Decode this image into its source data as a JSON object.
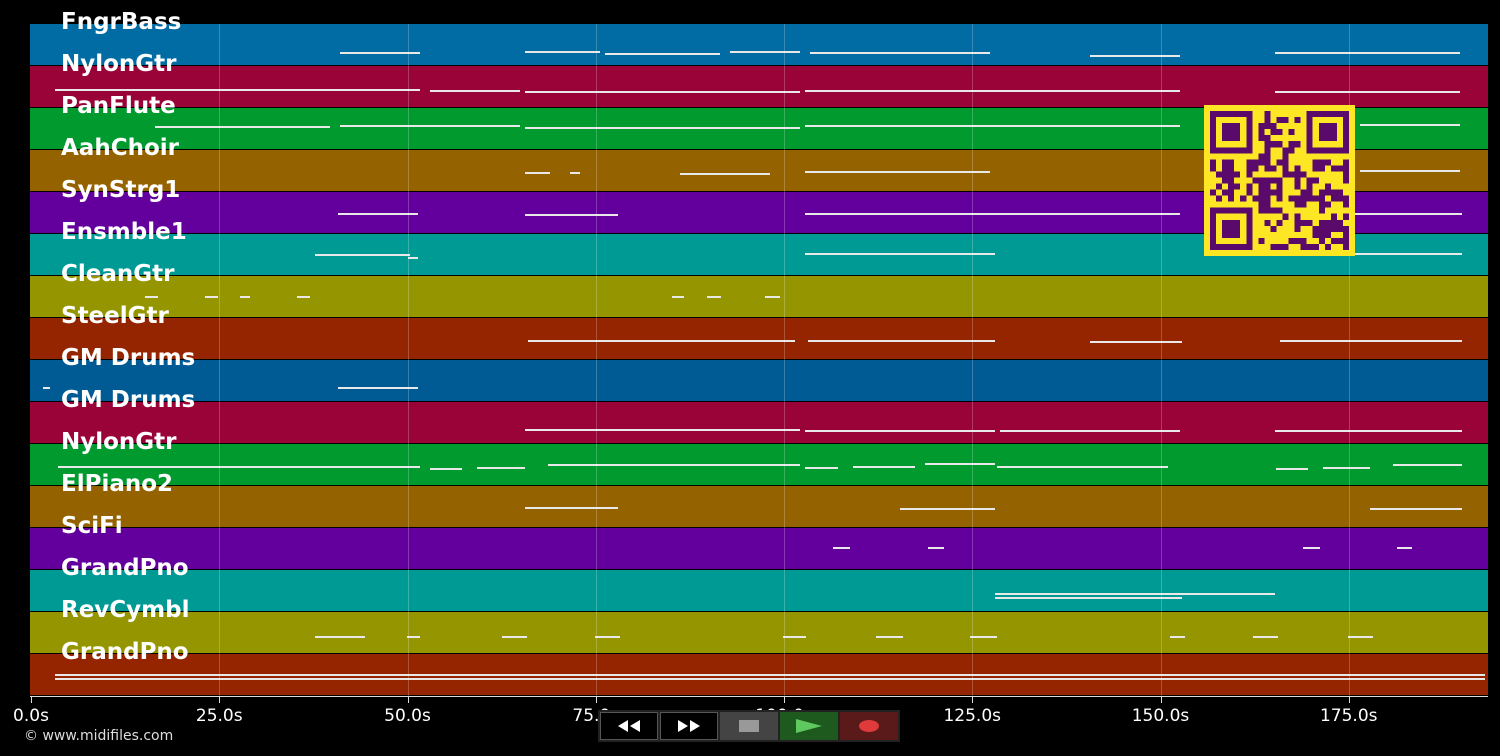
{
  "lanes": [
    {
      "label": "FngrBass",
      "color": "#016ba3",
      "notes": [
        [
          340,
          420,
          28
        ],
        [
          525,
          600,
          27
        ],
        [
          605,
          720,
          29
        ],
        [
          730,
          800,
          27
        ],
        [
          810,
          990,
          28
        ],
        [
          1090,
          1180,
          31
        ],
        [
          1275,
          1460,
          28
        ]
      ]
    },
    {
      "label": "NylonGtr",
      "color": "#9a0338",
      "notes": [
        [
          55,
          420,
          23
        ],
        [
          430,
          520,
          24
        ],
        [
          525,
          800,
          25
        ],
        [
          805,
          1180,
          24
        ],
        [
          1275,
          1460,
          25
        ]
      ]
    },
    {
      "label": "PanFlute",
      "color": "#009a2e",
      "notes": [
        [
          155,
          330,
          18
        ],
        [
          340,
          520,
          17
        ],
        [
          525,
          800,
          19
        ],
        [
          805,
          1180,
          17
        ],
        [
          1360,
          1460,
          16
        ]
      ]
    },
    {
      "label": "AahChoir",
      "color": "#956200",
      "notes": [
        [
          525,
          550,
          22
        ],
        [
          570,
          580,
          22
        ],
        [
          680,
          770,
          23
        ],
        [
          805,
          990,
          21
        ],
        [
          1360,
          1460,
          20
        ]
      ]
    },
    {
      "label": "SynStrg1",
      "color": "#63009d",
      "notes": [
        [
          338,
          418,
          21
        ],
        [
          525,
          618,
          22
        ],
        [
          805,
          1180,
          21
        ],
        [
          1355,
          1462,
          21
        ]
      ]
    },
    {
      "label": "Ensmble1",
      "color": "#009a95",
      "notes": [
        [
          315,
          410,
          20
        ],
        [
          408,
          418,
          23
        ],
        [
          805,
          995,
          19
        ],
        [
          1355,
          1462,
          19
        ]
      ]
    },
    {
      "label": "CleanGtr",
      "color": "#959500",
      "notes": [
        [
          145,
          158,
          20
        ],
        [
          205,
          218,
          20
        ],
        [
          240,
          250,
          20
        ],
        [
          297,
          310,
          20
        ],
        [
          672,
          684,
          20
        ],
        [
          707,
          721,
          20
        ],
        [
          765,
          780,
          20
        ]
      ]
    },
    {
      "label": "SteelGtr",
      "color": "#952500",
      "notes": [
        [
          528,
          795,
          22
        ],
        [
          808,
          995,
          22
        ],
        [
          1090,
          1182,
          23
        ],
        [
          1280,
          1462,
          22
        ]
      ]
    },
    {
      "label": "GM Drums",
      "color": "#005b95",
      "notes": [
        [
          43,
          50,
          27
        ],
        [
          338,
          418,
          27
        ]
      ]
    },
    {
      "label": "GM Drums",
      "color": "#9a0338",
      "notes": [
        [
          525,
          800,
          27
        ],
        [
          805,
          995,
          28
        ],
        [
          1000,
          1180,
          28
        ],
        [
          1275,
          1462,
          28
        ]
      ]
    },
    {
      "label": "NylonGtr",
      "color": "#009a2e",
      "notes": [
        [
          58,
          420,
          22
        ],
        [
          430,
          462,
          24
        ],
        [
          477,
          525,
          23
        ],
        [
          548,
          800,
          20
        ],
        [
          805,
          838,
          23
        ],
        [
          853,
          915,
          22
        ],
        [
          925,
          995,
          19
        ],
        [
          997,
          1168,
          22
        ],
        [
          1276,
          1308,
          24
        ],
        [
          1323,
          1370,
          23
        ],
        [
          1393,
          1462,
          20
        ]
      ]
    },
    {
      "label": "ElPiano2",
      "color": "#956200",
      "notes": [
        [
          525,
          618,
          21
        ],
        [
          900,
          995,
          22
        ],
        [
          1370,
          1462,
          22
        ]
      ]
    },
    {
      "label": "SciFi",
      "color": "#63009d",
      "notes": [
        [
          833,
          850,
          19
        ],
        [
          928,
          944,
          19
        ],
        [
          1303,
          1320,
          19
        ],
        [
          1397,
          1412,
          19
        ]
      ]
    },
    {
      "label": "GrandPno",
      "color": "#009a95",
      "notes": [
        [
          995,
          1275,
          23
        ],
        [
          995,
          1182,
          27
        ]
      ]
    },
    {
      "label": "RevCymbl",
      "color": "#959500",
      "notes": [
        [
          315,
          365,
          24
        ],
        [
          407,
          420,
          24
        ],
        [
          502,
          527,
          24
        ],
        [
          595,
          620,
          24
        ],
        [
          783,
          806,
          24
        ],
        [
          876,
          903,
          24
        ],
        [
          970,
          997,
          24
        ],
        [
          1170,
          1185,
          24
        ],
        [
          1253,
          1278,
          24
        ],
        [
          1348,
          1373,
          24
        ]
      ]
    },
    {
      "label": "GrandPno",
      "color": "#952500",
      "notes": [
        [
          55,
          1485,
          20
        ],
        [
          55,
          1485,
          24
        ]
      ]
    }
  ],
  "timeline": {
    "ticks": [
      {
        "label": "0.0s",
        "t": 0
      },
      {
        "label": "25.0s",
        "t": 25
      },
      {
        "label": "50.0s",
        "t": 50
      },
      {
        "label": "75.0s",
        "t": 75
      },
      {
        "label": "100.0s",
        "t": 100
      },
      {
        "label": "125.0s",
        "t": 125
      },
      {
        "label": "150.0s",
        "t": 150
      },
      {
        "label": "175.0s",
        "t": 175
      }
    ],
    "duration_max": 193.5
  },
  "copyright": "© www.midifiles.com",
  "controls": {
    "rewind": "rewind-icon",
    "fast_forward": "fast-forward-icon",
    "stop": "stop-icon",
    "play": "play-icon",
    "record": "record-icon"
  },
  "colors": {
    "qr_fg": "#5a0a6a",
    "qr_bg": "#fde725"
  }
}
